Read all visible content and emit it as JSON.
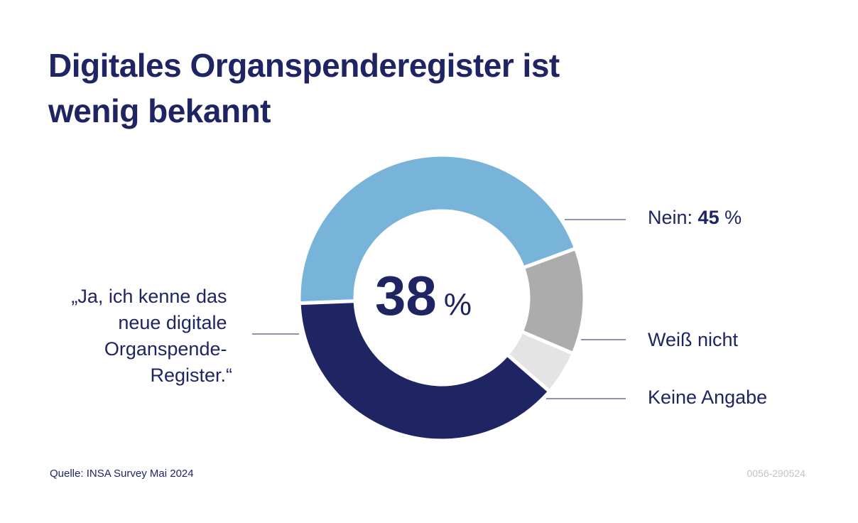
{
  "title": "Digitales Organspenderegister ist wenig bekannt",
  "source": "Quelle: INSA Survey Mai 2024",
  "code": "0056-290524",
  "colors": {
    "text": "#1f2563",
    "ja": "#1f2563",
    "nein": "#78b4da",
    "weiss_nicht": "#acacac",
    "keine_angabe": "#e4e4e4",
    "leader": "#1f2563"
  },
  "chart_data": {
    "type": "pie",
    "style": "donut",
    "slices": [
      {
        "key": "nein",
        "value": 45
      },
      {
        "key": "weiss_nicht",
        "value": 12
      },
      {
        "key": "keine_angabe",
        "value": 5
      },
      {
        "key": "ja",
        "value": 38
      }
    ],
    "center": {
      "value": "38",
      "unit": "%"
    },
    "labels": {
      "ja": [
        "„Ja, ich kenne das",
        "neue digitale",
        "Organspende-",
        "Register.“"
      ],
      "nein_text": "Nein: ",
      "nein_value": "45",
      "nein_unit": " %",
      "weiss_nicht": "Weiß nicht",
      "keine_angabe": "Keine Angabe"
    }
  }
}
